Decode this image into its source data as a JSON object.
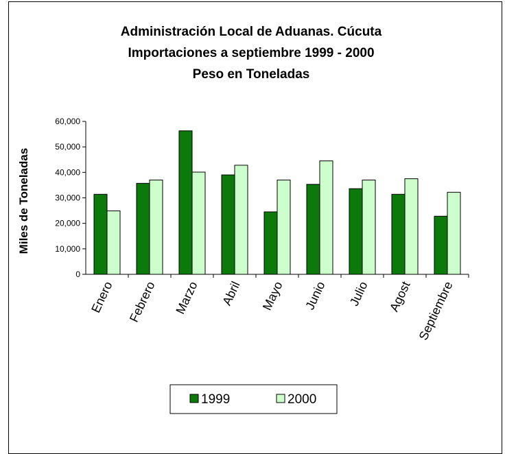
{
  "chart_data": {
    "type": "bar",
    "title_lines": [
      "Administración Local de Aduanas. Cúcuta",
      "Importaciones a septiembre 1999 - 2000",
      "Peso en Toneladas"
    ],
    "xlabel": "",
    "ylabel": "Miles de Toneladas",
    "ylim": [
      0,
      60000
    ],
    "yticks": [
      "0",
      "10,000",
      "20,000",
      "30,000",
      "40,000",
      "50,000",
      "60,000"
    ],
    "grid": false,
    "legend_position": "bottom",
    "categories": [
      "Enero",
      "Febrero",
      "Marzo",
      "Abril",
      "Mayo",
      "Junio",
      "Julio",
      "Agost",
      "Septiembre"
    ],
    "series": [
      {
        "name": "1999",
        "color": "#0b7a0b",
        "values": [
          31400,
          35700,
          56300,
          39000,
          24500,
          35300,
          33600,
          31400,
          22800
        ]
      },
      {
        "name": "2000",
        "color": "#ccffcc",
        "values": [
          24900,
          37000,
          40100,
          42800,
          37000,
          44500,
          37000,
          37500,
          32200
        ]
      }
    ]
  }
}
